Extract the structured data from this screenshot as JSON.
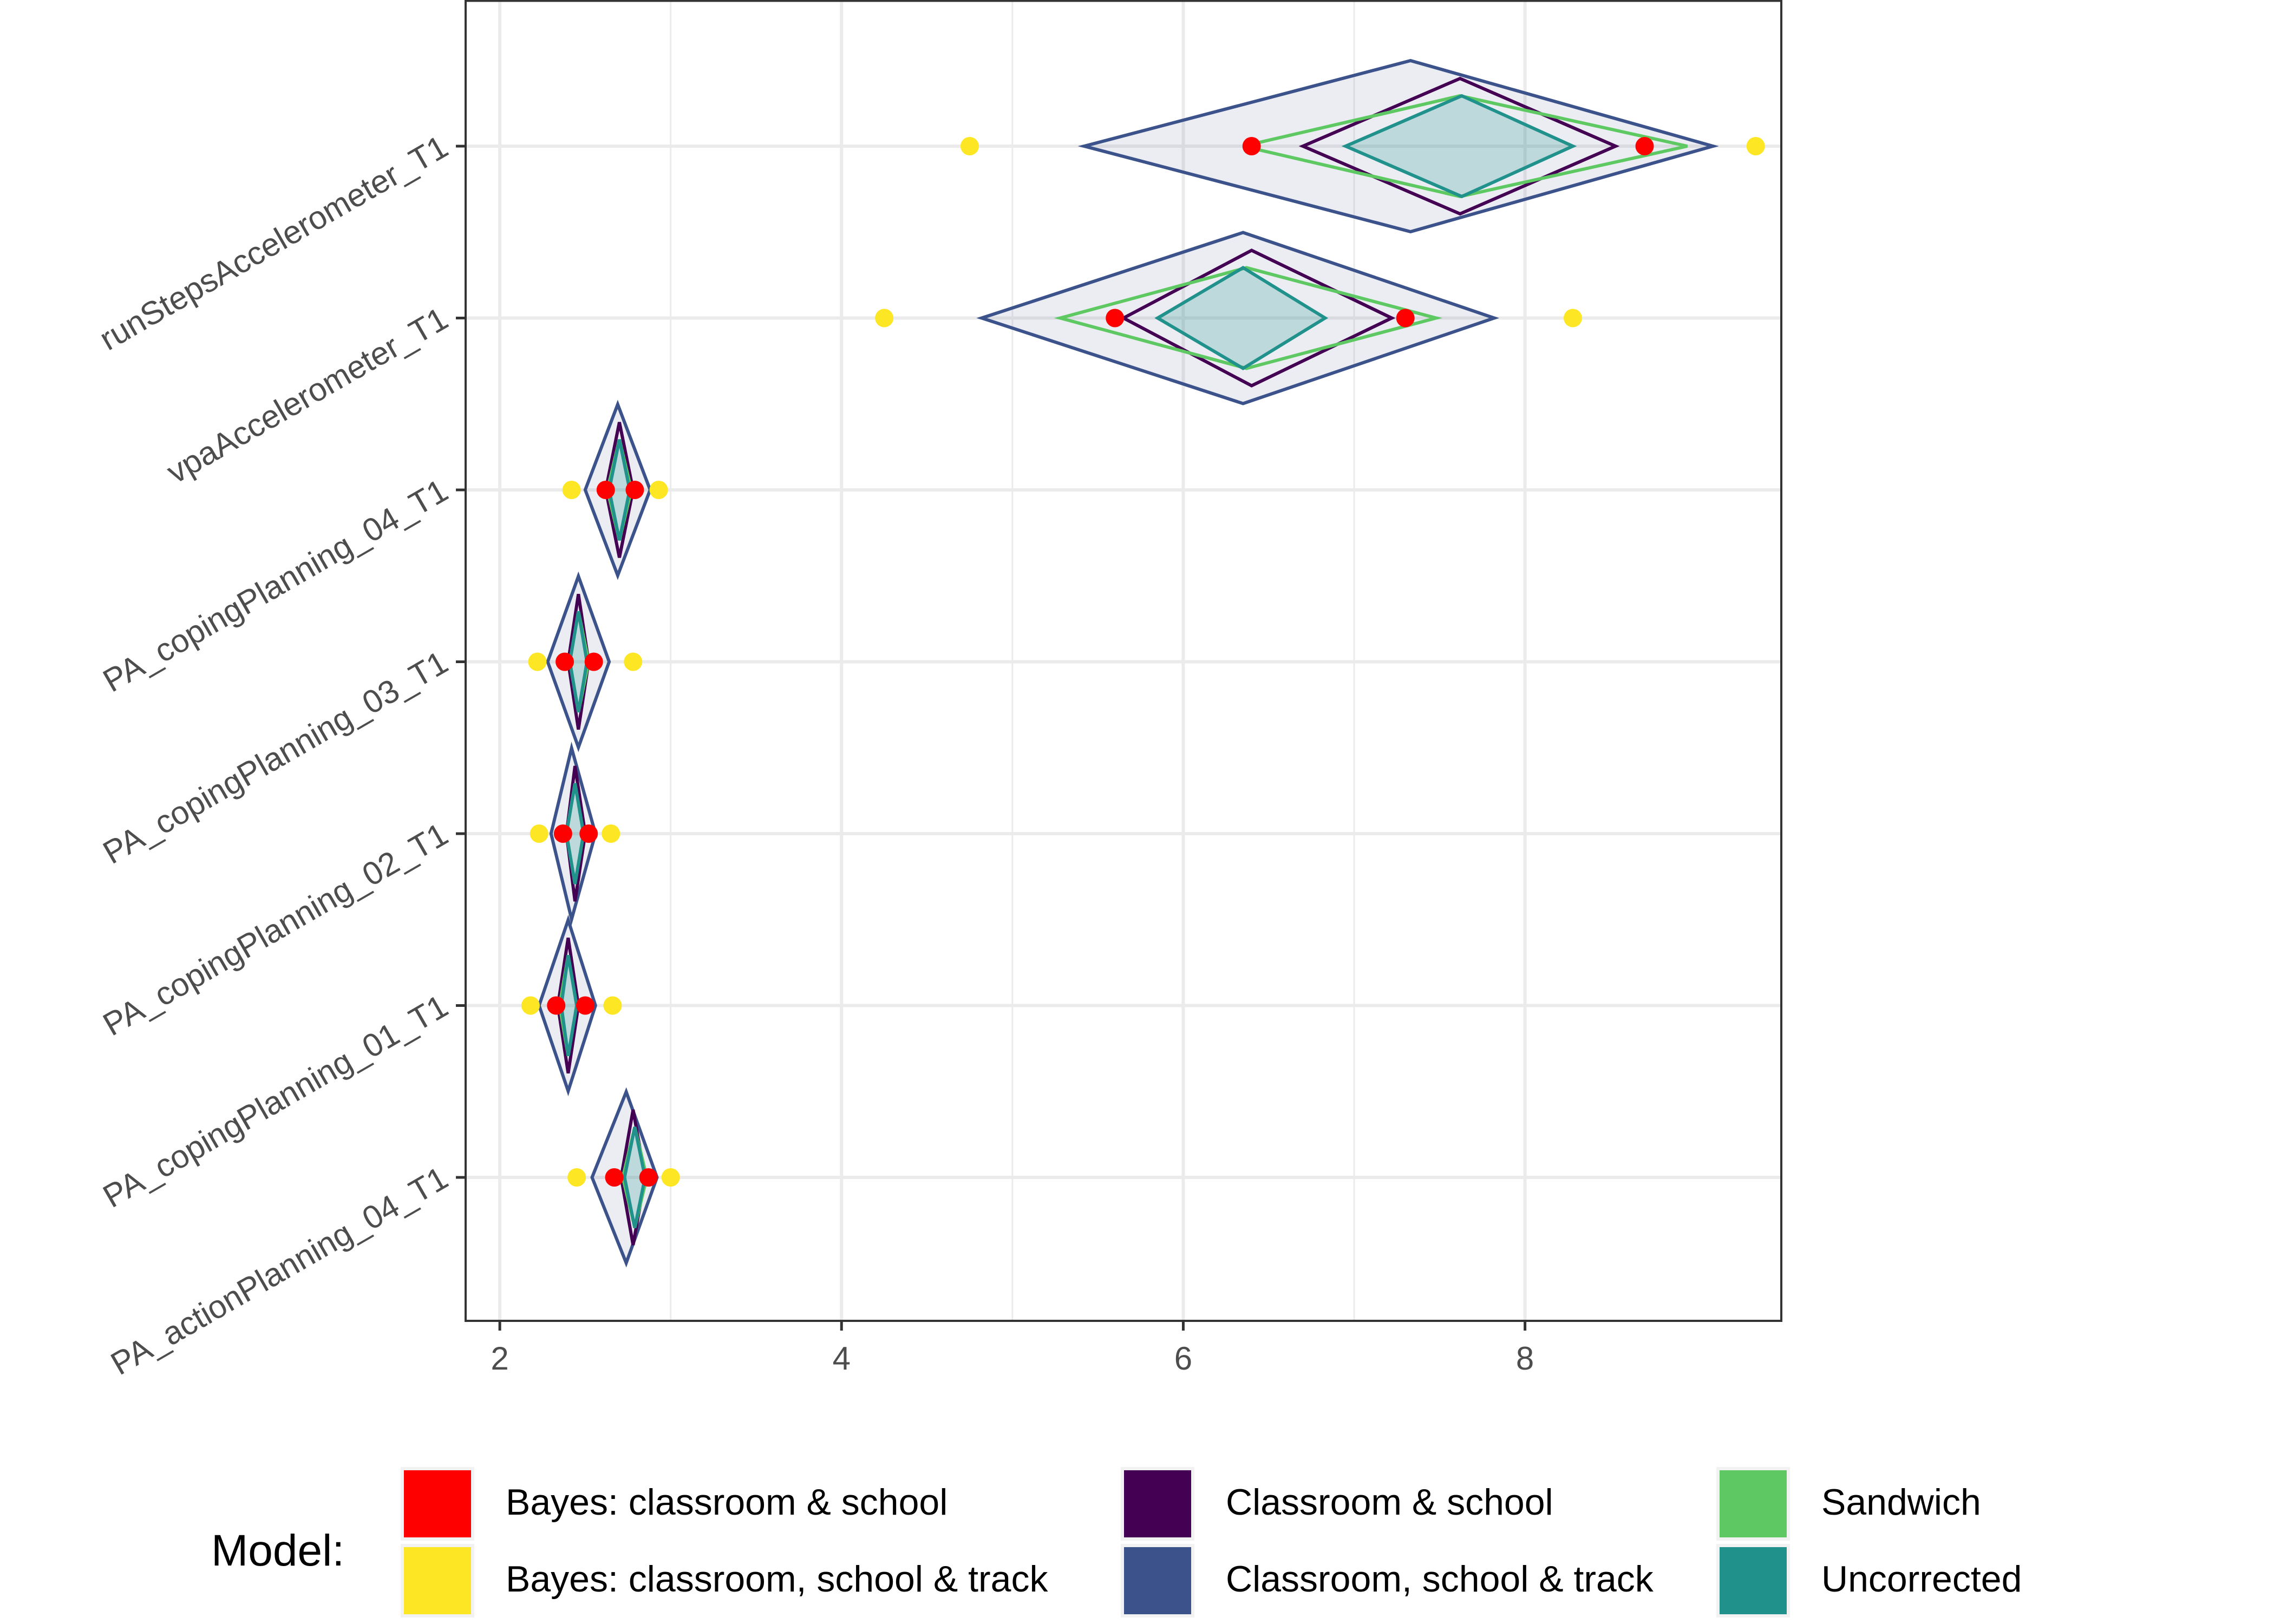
{
  "chart_data": {
    "type": "diamond-interval",
    "xlim": [
      1.8,
      9.5
    ],
    "x_ticks": [
      2,
      4,
      6,
      8
    ],
    "x_tick_labels": [
      "2",
      "4",
      "6",
      "8"
    ],
    "grid": true,
    "xlabel": "",
    "ylabel": "",
    "categories": [
      "runStepsAccelerometer_T1",
      "vpaAccelerometer_T1",
      "PA_copingPlanning_04_T1",
      "PA_copingPlanning_03_T1",
      "PA_copingPlanning_02_T1",
      "PA_copingPlanning_01_T1",
      "PA_actionPlanning_04_T1"
    ],
    "legend": {
      "title": "Model:",
      "position": "bottom",
      "items": [
        {
          "label": "Bayes: classroom & school",
          "color": "#ff0000"
        },
        {
          "label": "Bayes: classroom, school & track",
          "color": "#fde725"
        },
        {
          "label": "Classroom & school",
          "color": "#440154"
        },
        {
          "label": "Classroom, school & track",
          "color": "#3b528b"
        },
        {
          "label": "Sandwich",
          "color": "#5ec962"
        },
        {
          "label": "Uncorrected",
          "color": "#21918c"
        }
      ]
    },
    "series": [
      {
        "name": "Classroom, school & track",
        "kind": "diamond",
        "color": "#3b528b",
        "fill": "rgba(59,82,139,0.10)",
        "rows": [
          {
            "mean": 7.33,
            "lower": 5.42,
            "upper": 9.1
          },
          {
            "mean": 6.35,
            "lower": 4.82,
            "upper": 7.82
          },
          {
            "mean": 2.69,
            "lower": 2.5,
            "upper": 2.88
          },
          {
            "mean": 2.46,
            "lower": 2.28,
            "upper": 2.64
          },
          {
            "mean": 2.42,
            "lower": 2.3,
            "upper": 2.56
          },
          {
            "mean": 2.4,
            "lower": 2.23,
            "upper": 2.56
          },
          {
            "mean": 2.74,
            "lower": 2.54,
            "upper": 2.92
          }
        ]
      },
      {
        "name": "Classroom & school",
        "kind": "diamond",
        "color": "#440154",
        "fill": "none",
        "rows": [
          {
            "mean": 7.62,
            "lower": 6.7,
            "upper": 8.53
          },
          {
            "mean": 6.4,
            "lower": 5.65,
            "upper": 7.22
          },
          {
            "mean": 2.7,
            "lower": 2.62,
            "upper": 2.78
          },
          {
            "mean": 2.46,
            "lower": 2.4,
            "upper": 2.52
          },
          {
            "mean": 2.44,
            "lower": 2.39,
            "upper": 2.5
          },
          {
            "mean": 2.4,
            "lower": 2.34,
            "upper": 2.46
          },
          {
            "mean": 2.78,
            "lower": 2.71,
            "upper": 2.85
          }
        ]
      },
      {
        "name": "Sandwich",
        "kind": "diamond",
        "color": "#5ec962",
        "fill": "none",
        "rows": [
          {
            "mean": 7.62,
            "lower": 6.35,
            "upper": 8.95
          },
          {
            "mean": 6.37,
            "lower": 5.28,
            "upper": 7.48
          },
          {
            "mean": 2.7,
            "lower": 2.63,
            "upper": 2.77
          },
          {
            "mean": 2.46,
            "lower": 2.41,
            "upper": 2.52
          },
          {
            "mean": 2.44,
            "lower": 2.39,
            "upper": 2.49
          },
          {
            "mean": 2.4,
            "lower": 2.35,
            "upper": 2.45
          },
          {
            "mean": 2.79,
            "lower": 2.72,
            "upper": 2.86
          }
        ]
      },
      {
        "name": "Uncorrected",
        "kind": "diamond",
        "color": "#21918c",
        "fill": "rgba(33,145,140,0.22)",
        "rows": [
          {
            "mean": 7.63,
            "lower": 6.95,
            "upper": 8.28
          },
          {
            "mean": 6.35,
            "lower": 5.85,
            "upper": 6.83
          },
          {
            "mean": 2.7,
            "lower": 2.64,
            "upper": 2.76
          },
          {
            "mean": 2.46,
            "lower": 2.41,
            "upper": 2.51
          },
          {
            "mean": 2.44,
            "lower": 2.39,
            "upper": 2.49
          },
          {
            "mean": 2.4,
            "lower": 2.36,
            "upper": 2.45
          },
          {
            "mean": 2.79,
            "lower": 2.73,
            "upper": 2.85
          }
        ]
      },
      {
        "name": "Bayes: classroom & school",
        "kind": "points",
        "color": "#ff0000",
        "rows": [
          [
            6.4,
            8.7
          ],
          [
            5.6,
            7.3
          ],
          [
            2.62,
            2.79
          ],
          [
            2.38,
            2.55
          ],
          [
            2.37,
            2.52
          ],
          [
            2.33,
            2.5
          ],
          [
            2.67,
            2.87
          ]
        ]
      },
      {
        "name": "Bayes: classroom, school & track",
        "kind": "points",
        "color": "#fde725",
        "rows": [
          [
            4.75,
            9.35
          ],
          [
            4.25,
            8.28
          ],
          [
            2.42,
            2.93
          ],
          [
            2.22,
            2.78
          ],
          [
            2.23,
            2.65
          ],
          [
            2.18,
            2.66
          ],
          [
            2.45,
            3.0
          ]
        ]
      }
    ]
  }
}
